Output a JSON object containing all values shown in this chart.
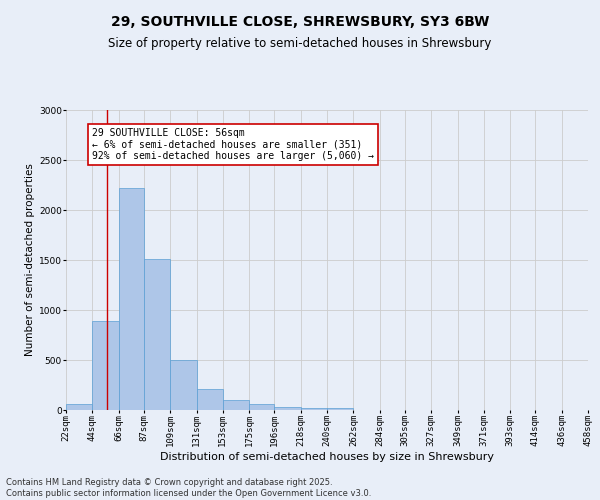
{
  "title": "29, SOUTHVILLE CLOSE, SHREWSBURY, SY3 6BW",
  "subtitle": "Size of property relative to semi-detached houses in Shrewsbury",
  "xlabel": "Distribution of semi-detached houses by size in Shrewsbury",
  "ylabel": "Number of semi-detached properties",
  "footer_line1": "Contains HM Land Registry data © Crown copyright and database right 2025.",
  "footer_line2": "Contains public sector information licensed under the Open Government Licence v3.0.",
  "annotation_title": "29 SOUTHVILLE CLOSE: 56sqm",
  "annotation_line2": "← 6% of semi-detached houses are smaller (351)",
  "annotation_line3": "92% of semi-detached houses are larger (5,060) →",
  "property_size": 56,
  "bin_edges": [
    22,
    44,
    66,
    87,
    109,
    131,
    153,
    175,
    196,
    218,
    240,
    262,
    284,
    305,
    327,
    349,
    371,
    393,
    414,
    436,
    458
  ],
  "bar_heights": [
    60,
    890,
    2220,
    1510,
    500,
    210,
    100,
    60,
    30,
    20,
    20,
    0,
    0,
    0,
    0,
    0,
    0,
    0,
    0,
    0
  ],
  "bar_color": "#aec6e8",
  "bar_edge_color": "#5a9fd4",
  "vline_color": "#cc0000",
  "vline_x": 56,
  "ylim": [
    0,
    3000
  ],
  "yticks": [
    0,
    500,
    1000,
    1500,
    2000,
    2500,
    3000
  ],
  "grid_color": "#cccccc",
  "background_color": "#e8eef8",
  "annotation_box_color": "#ffffff",
  "annotation_box_edge_color": "#cc0000",
  "title_fontsize": 10,
  "subtitle_fontsize": 8.5,
  "ylabel_fontsize": 7.5,
  "xlabel_fontsize": 8,
  "tick_fontsize": 6.5,
  "annotation_fontsize": 7,
  "footer_fontsize": 6
}
